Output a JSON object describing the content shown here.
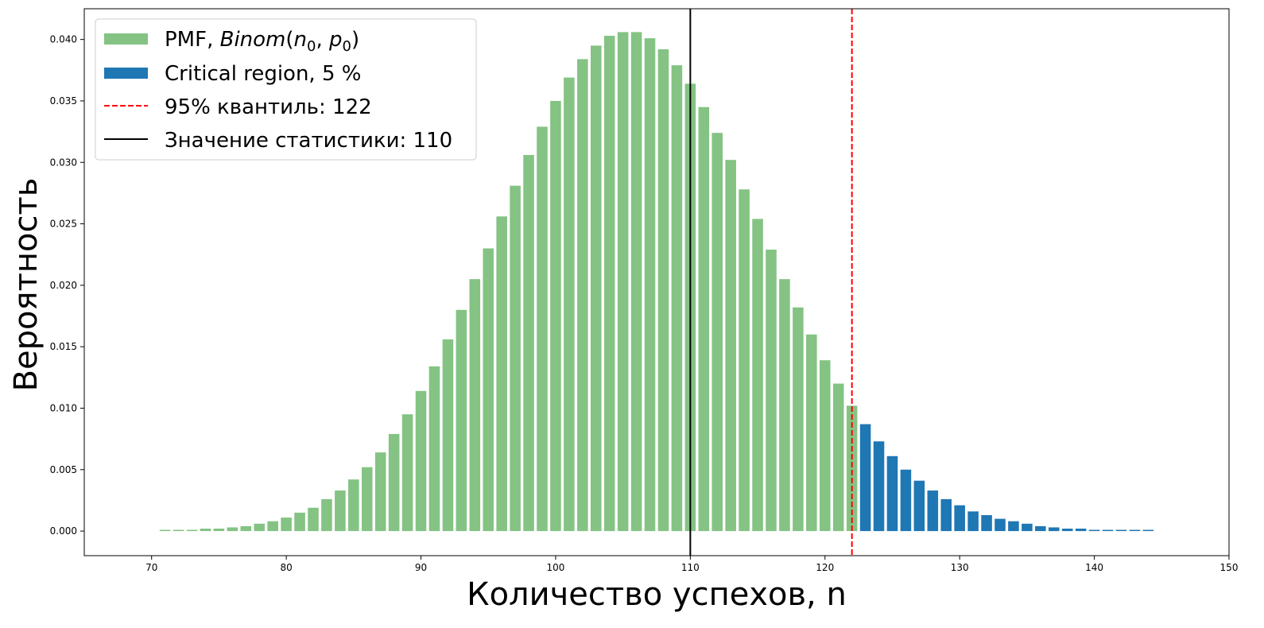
{
  "chart_data": {
    "type": "bar",
    "title": "",
    "xlabel": "Количество успехов, n",
    "ylabel": "Вероятность",
    "xlim": [
      65,
      150
    ],
    "ylim": [
      -0.002,
      0.0425
    ],
    "xticks": [
      70,
      80,
      90,
      100,
      110,
      120,
      130,
      140,
      150
    ],
    "yticks": [
      0.0,
      0.005,
      0.01,
      0.015,
      0.02,
      0.025,
      0.03,
      0.035,
      0.04
    ],
    "ytick_labels": [
      "0.000",
      "0.005",
      "0.010",
      "0.015",
      "0.020",
      "0.025",
      "0.030",
      "0.035",
      "0.040"
    ],
    "grid": false,
    "legend_position": "top-left",
    "series": [
      {
        "name": "PMF, Binom(n0, p0)",
        "legend_parts": {
          "prefix": "PMF, ",
          "italic": "Binom",
          "args": [
            "n",
            "0",
            "p",
            "0"
          ]
        },
        "color": "#84c383",
        "x": [
          71,
          72,
          73,
          74,
          75,
          76,
          77,
          78,
          79,
          80,
          81,
          82,
          83,
          84,
          85,
          86,
          87,
          88,
          89,
          90,
          91,
          92,
          93,
          94,
          95,
          96,
          97,
          98,
          99,
          100,
          101,
          102,
          103,
          104,
          105,
          106,
          107,
          108,
          109,
          110,
          111,
          112,
          113,
          114,
          115,
          116,
          117,
          118,
          119,
          120,
          121,
          122
        ],
        "values": [
          0.0001,
          0.0001,
          0.0001,
          0.0002,
          0.0002,
          0.0003,
          0.0004,
          0.0006,
          0.0008,
          0.0011,
          0.0015,
          0.0019,
          0.0026,
          0.0033,
          0.0042,
          0.0052,
          0.0064,
          0.0079,
          0.0095,
          0.0114,
          0.0134,
          0.0156,
          0.018,
          0.0205,
          0.023,
          0.0256,
          0.0281,
          0.0306,
          0.0329,
          0.035,
          0.0369,
          0.0384,
          0.0395,
          0.0403,
          0.0406,
          0.0406,
          0.0401,
          0.0392,
          0.0379,
          0.0364,
          0.0345,
          0.0324,
          0.0302,
          0.0278,
          0.0254,
          0.0229,
          0.0205,
          0.0182,
          0.016,
          0.0139,
          0.012,
          0.0102
        ]
      },
      {
        "name": "Critical region, 5 %",
        "color": "#1f77b4",
        "x": [
          123,
          124,
          125,
          126,
          127,
          128,
          129,
          130,
          131,
          132,
          133,
          134,
          135,
          136,
          137,
          138,
          139,
          140,
          141,
          142,
          143,
          144
        ],
        "values": [
          0.0087,
          0.0073,
          0.0061,
          0.005,
          0.0041,
          0.0033,
          0.0026,
          0.0021,
          0.0016,
          0.0013,
          0.001,
          0.0008,
          0.0006,
          0.0004,
          0.0003,
          0.0002,
          0.0002,
          0.0001,
          0.0001,
          0.0001,
          0.0001,
          0.0001
        ]
      }
    ],
    "vlines": [
      {
        "name": "95% квантиль: 122",
        "x": 122,
        "color": "#ff0000",
        "style": "dashed"
      },
      {
        "name": "Значение статистики: 110",
        "x": 110,
        "color": "#000000",
        "style": "solid"
      }
    ]
  }
}
